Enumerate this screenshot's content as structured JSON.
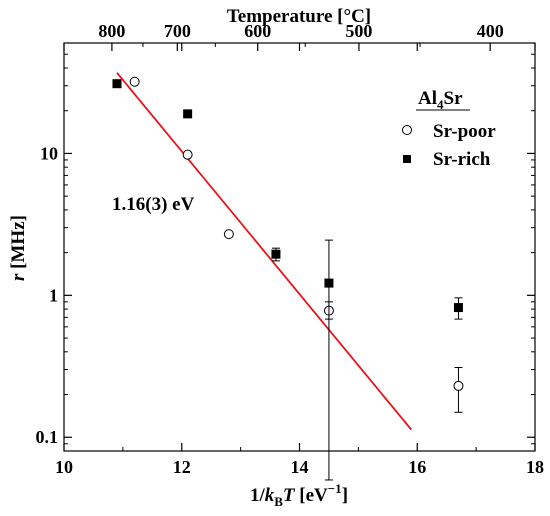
{
  "chart_data": {
    "type": "scatter",
    "xlabel": {
      "pre": "1/",
      "k": "k",
      "sub": "B",
      "T": "T",
      "unit": " [eV",
      "sup": "−1",
      "close": "]"
    },
    "ylabel": {
      "r": "r",
      "unit": " [MHz]"
    },
    "top_axis_title": "Temperature [°C]",
    "x_range": [
      10,
      18
    ],
    "y_range": [
      0.08,
      60
    ],
    "y_scale": "log",
    "x_ticks": [
      10,
      12,
      14,
      16,
      18
    ],
    "x_tick_labels": [
      "10",
      "12",
      "14",
      "16",
      "18"
    ],
    "y_ticks": [
      0.1,
      1,
      10
    ],
    "y_tick_labels": [
      "0.1",
      "1",
      "10"
    ],
    "top_ticks_celsius": [
      400,
      500,
      600,
      700,
      800
    ],
    "top_tick_labels": [
      "400",
      "500",
      "600",
      "700",
      "800"
    ],
    "legend": {
      "title_main": "Al",
      "title_sub": "4",
      "title_end": "Sr",
      "placement": "top-right"
    },
    "series": [
      {
        "name": "Sr-poor",
        "marker": "open-circle",
        "points": [
          {
            "x": 11.2,
            "y": 32
          },
          {
            "x": 12.1,
            "y": 9.8
          },
          {
            "x": 12.8,
            "y": 2.7
          },
          {
            "x": 14.5,
            "y": 0.78,
            "err": [
              0.68,
              0.9
            ]
          },
          {
            "x": 16.7,
            "y": 0.23,
            "err": [
              0.15,
              0.31
            ]
          }
        ]
      },
      {
        "name": "Sr-rich",
        "marker": "filled-square",
        "points": [
          {
            "x": 10.9,
            "y": 31
          },
          {
            "x": 12.1,
            "y": 19
          },
          {
            "x": 13.6,
            "y": 1.95,
            "err": [
              1.75,
              2.15
            ]
          },
          {
            "x": 14.5,
            "y": 1.22,
            "err": [
              0.05,
              2.45
            ]
          },
          {
            "x": 16.7,
            "y": 0.82,
            "err": [
              0.68,
              0.96
            ]
          }
        ]
      }
    ],
    "fit": {
      "label": "1.16(3) eV",
      "color": "#e8141b",
      "from": {
        "x": 10.9,
        "y": 37
      },
      "to": {
        "x": 15.9,
        "y": 0.113
      }
    }
  }
}
